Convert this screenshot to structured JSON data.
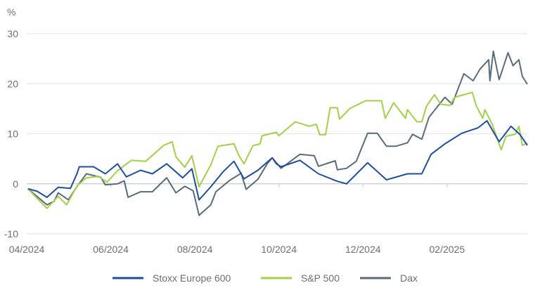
{
  "chart_data": {
    "type": "line",
    "title": "",
    "xlabel": "",
    "ylabel": "%",
    "x_unit": "months since 04/2024",
    "xlim": [
      0,
      11.91
    ],
    "ylim": [
      -10,
      30
    ],
    "yticks": [
      -10,
      0,
      10,
      20,
      30
    ],
    "ytick_labels": [
      "-10",
      "0",
      "10",
      "20",
      "30"
    ],
    "xticks": [
      0,
      2,
      4,
      6,
      8,
      10
    ],
    "xtick_labels": [
      "04/2024",
      "06/2024",
      "08/2024",
      "10/2024",
      "12/2024",
      "02/2025"
    ],
    "grid": "horizontal",
    "legend_position": "bottom",
    "series": [
      {
        "name": "Stoxx Europe 600",
        "color": "#1f4e9c",
        "x": [
          0.03,
          0.25,
          0.48,
          0.75,
          1.04,
          1.2,
          1.25,
          1.59,
          1.87,
          2.16,
          2.37,
          2.71,
          2.99,
          3.33,
          3.71,
          3.93,
          4.1,
          4.38,
          4.67,
          4.93,
          5.17,
          5.5,
          5.84,
          5.94,
          6.05,
          6.5,
          6.94,
          7.39,
          7.61,
          8.11,
          8.56,
          9.06,
          9.4,
          9.62,
          9.95,
          10.35,
          10.74,
          10.95,
          11.24,
          11.52,
          11.74,
          11.91
        ],
        "y": [
          -1,
          -1.5,
          -2.7,
          -0.7,
          -0.9,
          2.1,
          3.4,
          3.4,
          2,
          4,
          1.4,
          2.7,
          2,
          4,
          1.2,
          3,
          -3.2,
          -0.6,
          2.4,
          4.5,
          1,
          2.7,
          5.2,
          4,
          3.4,
          4.7,
          2,
          0.5,
          0,
          4.2,
          0.8,
          2,
          2,
          5.9,
          8,
          10.1,
          11.2,
          12.6,
          8.4,
          11.5,
          9.8,
          7.7
        ]
      },
      {
        "name": "S&P 500",
        "color": "#a3cf4a",
        "x": [
          0.03,
          0.48,
          0.75,
          0.95,
          1.2,
          1.42,
          1.71,
          1.91,
          2.16,
          2.49,
          2.83,
          3.26,
          3.46,
          3.55,
          3.76,
          3.93,
          4.1,
          4.38,
          4.55,
          4.93,
          5.05,
          5.17,
          5.38,
          5.55,
          5.6,
          5.94,
          6.0,
          6.39,
          6.72,
          6.89,
          6.97,
          7.11,
          7.22,
          7.39,
          7.44,
          7.68,
          8.06,
          8.44,
          8.53,
          8.73,
          9.01,
          9.06,
          9.28,
          9.4,
          9.51,
          9.7,
          9.85,
          10.07,
          10.18,
          10.4,
          10.6,
          10.69,
          10.85,
          10.9,
          11.07,
          11.29,
          11.4,
          11.62,
          11.71,
          11.79,
          11.91
        ],
        "y": [
          -1,
          -4.9,
          -2.5,
          -4.2,
          -0.4,
          1.2,
          1.5,
          0.3,
          2.6,
          4.7,
          4.5,
          7.7,
          8.4,
          5.4,
          3.3,
          5.6,
          -0.6,
          3.8,
          7.5,
          8,
          5.6,
          4,
          7.6,
          8,
          9.6,
          10.3,
          9.6,
          12.4,
          11.5,
          11.9,
          9.8,
          9.8,
          15.2,
          15.2,
          12.9,
          15,
          16.6,
          16.6,
          13.1,
          16.2,
          13.1,
          14.8,
          12.4,
          12.4,
          15.5,
          17.8,
          15.9,
          15.7,
          17.3,
          17.8,
          18.3,
          15.7,
          13.1,
          14.8,
          12,
          6.8,
          9.5,
          9.9,
          11.5,
          7.7,
          8.1
        ]
      },
      {
        "name": "Dax",
        "color": "#5a6b78",
        "x": [
          0.03,
          0.48,
          0.65,
          0.75,
          0.99,
          1.2,
          1.42,
          1.76,
          1.87,
          2.16,
          2.32,
          2.41,
          2.71,
          2.99,
          3.33,
          3.55,
          3.76,
          3.96,
          4.1,
          4.38,
          4.5,
          4.83,
          5.1,
          5.22,
          5.5,
          5.72,
          5.84,
          6.05,
          6.5,
          6.84,
          6.94,
          7.34,
          7.39,
          7.61,
          7.84,
          8.11,
          8.34,
          8.56,
          8.78,
          9.06,
          9.18,
          9.4,
          9.57,
          9.95,
          10.12,
          10.4,
          10.62,
          10.79,
          10.99,
          11.02,
          11.1,
          11.24,
          11.45,
          11.57,
          11.71,
          11.79,
          11.91
        ],
        "y": [
          -1,
          -4.2,
          -3.5,
          -1.8,
          -3.2,
          -0.5,
          2,
          1.3,
          -0.2,
          0,
          0.6,
          -2.7,
          -1.6,
          -1.6,
          1.2,
          -1.8,
          -0.5,
          -1.4,
          -6.3,
          -4.2,
          -1.6,
          0.7,
          2.1,
          -1.1,
          0.9,
          4,
          5.2,
          3.1,
          5.9,
          5.6,
          3.5,
          4.6,
          2.8,
          3.1,
          4.5,
          10.1,
          10.1,
          7.5,
          7.5,
          8.2,
          9.9,
          8.9,
          13.3,
          17.3,
          15.9,
          22,
          20.6,
          23,
          24.8,
          20.6,
          26.5,
          20.8,
          26.2,
          23.6,
          24.8,
          21.5,
          19.9
        ]
      }
    ]
  }
}
